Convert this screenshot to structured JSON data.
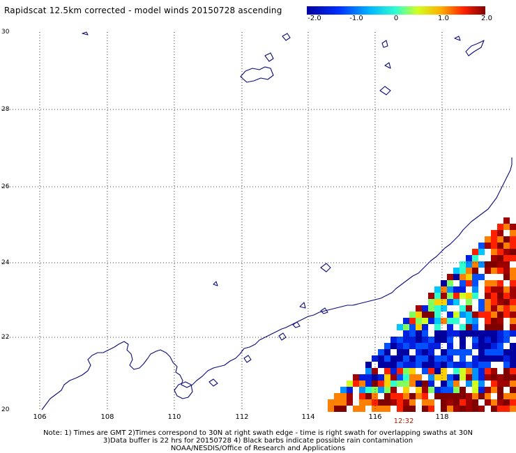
{
  "title": "Rapidscat 12.5km corrected - model winds 20150728 ascending",
  "colorbar": {
    "labels": [
      "-2.0",
      "-1.0",
      "0",
      "1.0",
      "2.0"
    ],
    "min": -2.0,
    "max": 2.0
  },
  "map": {
    "lat_range": [
      20,
      30
    ],
    "lon_range": [
      105,
      120
    ],
    "lat_ticks": [
      "30",
      "28",
      "26",
      "24",
      "22",
      "20"
    ],
    "lon_ticks": [
      "106",
      "108",
      "110",
      "112",
      "114",
      "116",
      "118"
    ],
    "swath_time": "12:32"
  },
  "notes": {
    "line1": "Note: 1) Times are GMT 2)Times correspond to 30N at right swath edge - time is right swath for overlapping swaths at 30N",
    "line2": "3)Data buffer is 22 hrs for 20150728 4) Black barbs indicate possible rain contamination",
    "line3": "NOAA/NESDIS/Office of Research and Applications"
  },
  "colors": {
    "coastline": "#0a0a7a",
    "grid": "#000000"
  }
}
